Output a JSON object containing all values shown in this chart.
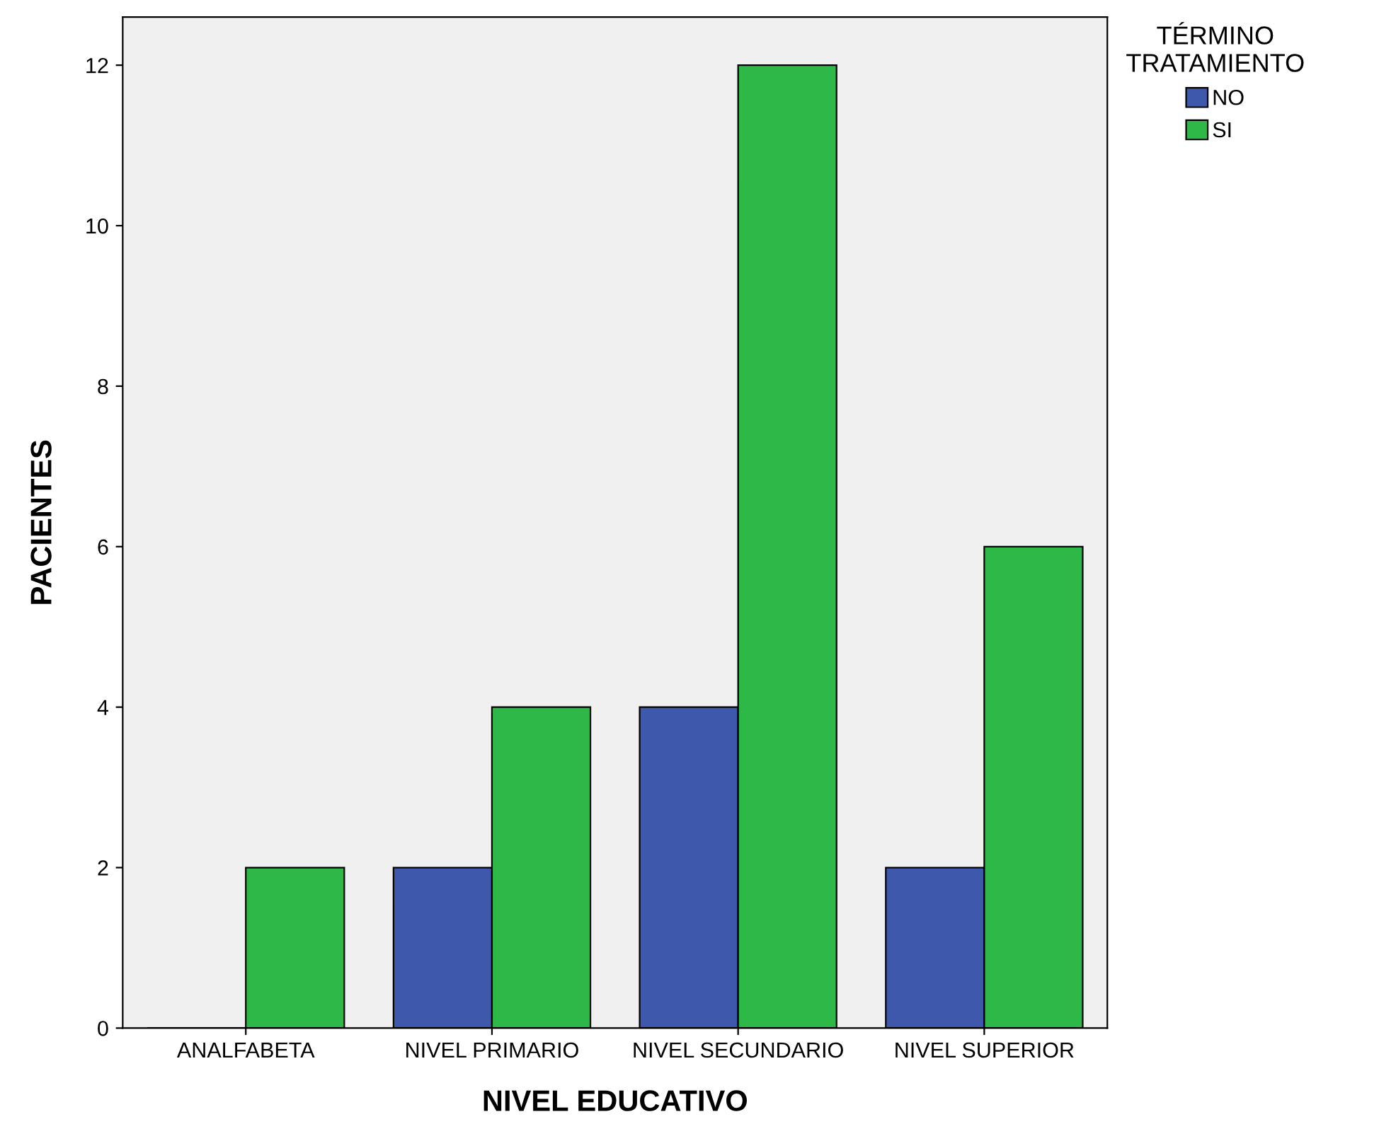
{
  "chart_data": {
    "type": "bar",
    "xlabel": "NIVEL EDUCATIVO",
    "ylabel": "PACIENTES",
    "legend_title": "TÉRMINO\nTRATAMIENTO",
    "categories": [
      "ANALFABETA",
      "NIVEL PRIMARIO",
      "NIVEL SECUNDARIO",
      "NIVEL SUPERIOR"
    ],
    "series": [
      {
        "name": "NO",
        "color": "#3e58ac",
        "values": [
          0,
          2,
          4,
          2
        ]
      },
      {
        "name": "SI",
        "color": "#2eb848",
        "values": [
          2,
          4,
          12,
          6
        ]
      }
    ],
    "ylim": [
      0,
      12.6
    ],
    "yticks": [
      0,
      2,
      4,
      6,
      8,
      10,
      12
    ],
    "grid": false,
    "legend": "top right"
  }
}
